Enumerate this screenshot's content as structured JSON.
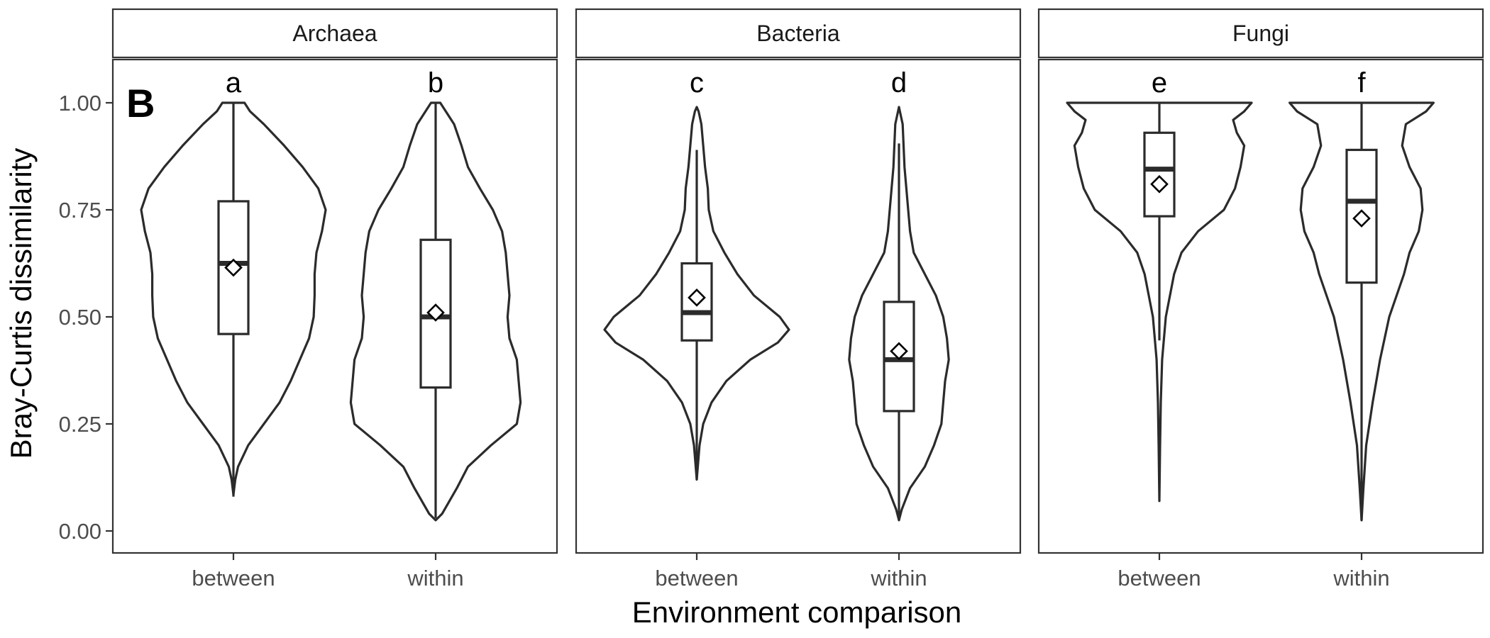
{
  "chart_data": {
    "type": "violin",
    "panel_tag": "B",
    "xlabel": "Environment comparison",
    "ylabel": "Bray-Curtis dissimilarity",
    "ylim": [
      0,
      1
    ],
    "yticks": [
      {
        "value": 0.0,
        "label": "0.00"
      },
      {
        "value": 0.25,
        "label": "0.25"
      },
      {
        "value": 0.5,
        "label": "0.50"
      },
      {
        "value": 0.75,
        "label": "0.75"
      },
      {
        "value": 1.0,
        "label": "1.00"
      }
    ],
    "categories": [
      "between",
      "within"
    ],
    "legend": "none",
    "grid": false,
    "colors": {
      "outline": "#2b2b2b",
      "fill": "#ffffff",
      "strip": "#ffffff"
    },
    "facets": [
      {
        "name": "Archaea",
        "groups": [
          {
            "category": "between",
            "letter": "a",
            "whisker_low": 0.08,
            "q1": 0.46,
            "median": 0.625,
            "q3": 0.77,
            "whisker_high": 1.0,
            "mean": 0.615,
            "density": [
              [
                0.085,
                0.0
              ],
              [
                0.12,
                0.02
              ],
              [
                0.15,
                0.05
              ],
              [
                0.2,
                0.16
              ],
              [
                0.25,
                0.33
              ],
              [
                0.3,
                0.5
              ],
              [
                0.35,
                0.62
              ],
              [
                0.4,
                0.72
              ],
              [
                0.45,
                0.82
              ],
              [
                0.5,
                0.87
              ],
              [
                0.55,
                0.88
              ],
              [
                0.6,
                0.88
              ],
              [
                0.65,
                0.9
              ],
              [
                0.7,
                0.96
              ],
              [
                0.75,
                1.0
              ],
              [
                0.8,
                0.92
              ],
              [
                0.85,
                0.75
              ],
              [
                0.9,
                0.55
              ],
              [
                0.95,
                0.33
              ],
              [
                0.98,
                0.18
              ],
              [
                1.0,
                0.12
              ]
            ]
          },
          {
            "category": "within",
            "letter": "b",
            "whisker_low": 0.03,
            "q1": 0.335,
            "median": 0.5,
            "q3": 0.68,
            "whisker_high": 1.0,
            "mean": 0.51,
            "density": [
              [
                0.025,
                0.0
              ],
              [
                0.04,
                0.07
              ],
              [
                0.07,
                0.15
              ],
              [
                0.1,
                0.23
              ],
              [
                0.15,
                0.35
              ],
              [
                0.2,
                0.6
              ],
              [
                0.25,
                0.88
              ],
              [
                0.3,
                0.92
              ],
              [
                0.35,
                0.9
              ],
              [
                0.4,
                0.88
              ],
              [
                0.45,
                0.8
              ],
              [
                0.5,
                0.78
              ],
              [
                0.55,
                0.8
              ],
              [
                0.6,
                0.78
              ],
              [
                0.65,
                0.76
              ],
              [
                0.7,
                0.72
              ],
              [
                0.75,
                0.62
              ],
              [
                0.8,
                0.48
              ],
              [
                0.85,
                0.35
              ],
              [
                0.9,
                0.28
              ],
              [
                0.95,
                0.2
              ],
              [
                1.0,
                0.05
              ]
            ]
          }
        ]
      },
      {
        "name": "Bacteria",
        "groups": [
          {
            "category": "between",
            "letter": "c",
            "whisker_low": 0.12,
            "q1": 0.445,
            "median": 0.51,
            "q3": 0.625,
            "whisker_high": 0.89,
            "mean": 0.545,
            "density": [
              [
                0.12,
                0.0
              ],
              [
                0.2,
                0.03
              ],
              [
                0.25,
                0.07
              ],
              [
                0.3,
                0.16
              ],
              [
                0.35,
                0.32
              ],
              [
                0.4,
                0.58
              ],
              [
                0.44,
                0.88
              ],
              [
                0.47,
                1.0
              ],
              [
                0.5,
                0.9
              ],
              [
                0.55,
                0.62
              ],
              [
                0.6,
                0.44
              ],
              [
                0.65,
                0.3
              ],
              [
                0.7,
                0.18
              ],
              [
                0.75,
                0.13
              ],
              [
                0.8,
                0.12
              ],
              [
                0.85,
                0.09
              ],
              [
                0.9,
                0.07
              ],
              [
                0.95,
                0.05
              ],
              [
                0.98,
                0.02
              ],
              [
                0.99,
                0.0
              ]
            ]
          },
          {
            "category": "within",
            "letter": "d",
            "whisker_low": 0.025,
            "q1": 0.28,
            "median": 0.4,
            "q3": 0.535,
            "whisker_high": 0.905,
            "mean": 0.42,
            "density": [
              [
                0.025,
                0.0
              ],
              [
                0.05,
                0.03
              ],
              [
                0.1,
                0.12
              ],
              [
                0.15,
                0.28
              ],
              [
                0.2,
                0.38
              ],
              [
                0.25,
                0.46
              ],
              [
                0.3,
                0.48
              ],
              [
                0.35,
                0.5
              ],
              [
                0.4,
                0.54
              ],
              [
                0.45,
                0.52
              ],
              [
                0.5,
                0.48
              ],
              [
                0.55,
                0.4
              ],
              [
                0.6,
                0.28
              ],
              [
                0.65,
                0.16
              ],
              [
                0.7,
                0.12
              ],
              [
                0.75,
                0.1
              ],
              [
                0.8,
                0.08
              ],
              [
                0.85,
                0.06
              ],
              [
                0.9,
                0.05
              ],
              [
                0.95,
                0.04
              ],
              [
                0.99,
                0.0
              ]
            ]
          }
        ]
      },
      {
        "name": "Fungi",
        "groups": [
          {
            "category": "between",
            "letter": "e",
            "whisker_low": 0.445,
            "q1": 0.735,
            "median": 0.845,
            "q3": 0.93,
            "whisker_high": 1.0,
            "mean": 0.81,
            "density": [
              [
                0.07,
                0.0
              ],
              [
                0.2,
                0.008
              ],
              [
                0.3,
                0.015
              ],
              [
                0.4,
                0.03
              ],
              [
                0.5,
                0.07
              ],
              [
                0.6,
                0.16
              ],
              [
                0.65,
                0.24
              ],
              [
                0.7,
                0.42
              ],
              [
                0.75,
                0.7
              ],
              [
                0.8,
                0.82
              ],
              [
                0.85,
                0.88
              ],
              [
                0.9,
                0.92
              ],
              [
                0.93,
                0.84
              ],
              [
                0.96,
                0.8
              ],
              [
                0.98,
                0.92
              ],
              [
                1.0,
                1.0
              ]
            ]
          },
          {
            "category": "within",
            "letter": "f",
            "whisker_low": 0.025,
            "q1": 0.58,
            "median": 0.77,
            "q3": 0.89,
            "whisker_high": 1.0,
            "mean": 0.73,
            "density": [
              [
                0.025,
                0.0
              ],
              [
                0.1,
                0.02
              ],
              [
                0.2,
                0.05
              ],
              [
                0.3,
                0.12
              ],
              [
                0.4,
                0.2
              ],
              [
                0.5,
                0.3
              ],
              [
                0.6,
                0.46
              ],
              [
                0.65,
                0.52
              ],
              [
                0.7,
                0.62
              ],
              [
                0.75,
                0.66
              ],
              [
                0.8,
                0.64
              ],
              [
                0.85,
                0.52
              ],
              [
                0.9,
                0.44
              ],
              [
                0.95,
                0.48
              ],
              [
                0.98,
                0.7
              ],
              [
                1.0,
                0.78
              ]
            ]
          }
        ]
      }
    ]
  }
}
